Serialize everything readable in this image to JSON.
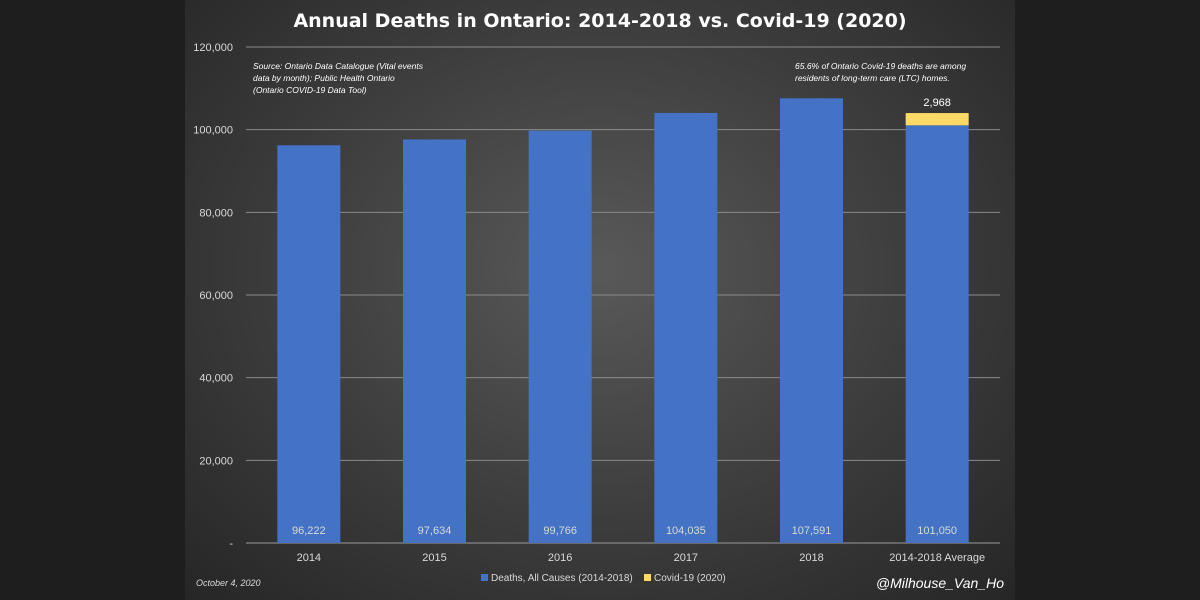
{
  "chart_data": {
    "type": "bar",
    "stacked": true,
    "title": "Annual Deaths in Ontario: 2014-2018 vs. Covid-19 (2020)",
    "categories": [
      "2014",
      "2015",
      "2016",
      "2017",
      "2018",
      "2014-2018 Average"
    ],
    "series": [
      {
        "name": "Deaths, All Causes (2014-2018)",
        "color": "#4472c4",
        "values": [
          96222,
          97634,
          99766,
          104035,
          107591,
          101050
        ],
        "labels": [
          "96,222",
          "97,634",
          "99,766",
          "104,035",
          "107,591",
          "101,050"
        ]
      },
      {
        "name": "Covid-19 (2020)",
        "color": "#ffd966",
        "values": [
          0,
          0,
          0,
          0,
          0,
          2968
        ],
        "labels": [
          "",
          "",
          "",
          "",
          "",
          "2,968"
        ]
      }
    ],
    "ylim": [
      0,
      120000
    ],
    "yticks": [
      0,
      20000,
      40000,
      60000,
      80000,
      100000,
      120000
    ],
    "ytick_labels": [
      "-",
      "20,000",
      "40,000",
      "60,000",
      "80,000",
      "100,000",
      "120,000"
    ],
    "grid": true,
    "legend_position": "bottom",
    "annotations": {
      "source": [
        "Source: Ontario Data Catalogue (Vital events",
        "data by month); Public Health Ontario",
        "(Ontario COVID-19 Data Tool)"
      ],
      "ltc_note": [
        "65.6% of Ontario Covid-19 deaths are among",
        "residents of long-term care (LTC) homes."
      ]
    }
  },
  "footer": {
    "date": "October 4, 2020",
    "handle": "@Milhouse_Van_Ho"
  }
}
